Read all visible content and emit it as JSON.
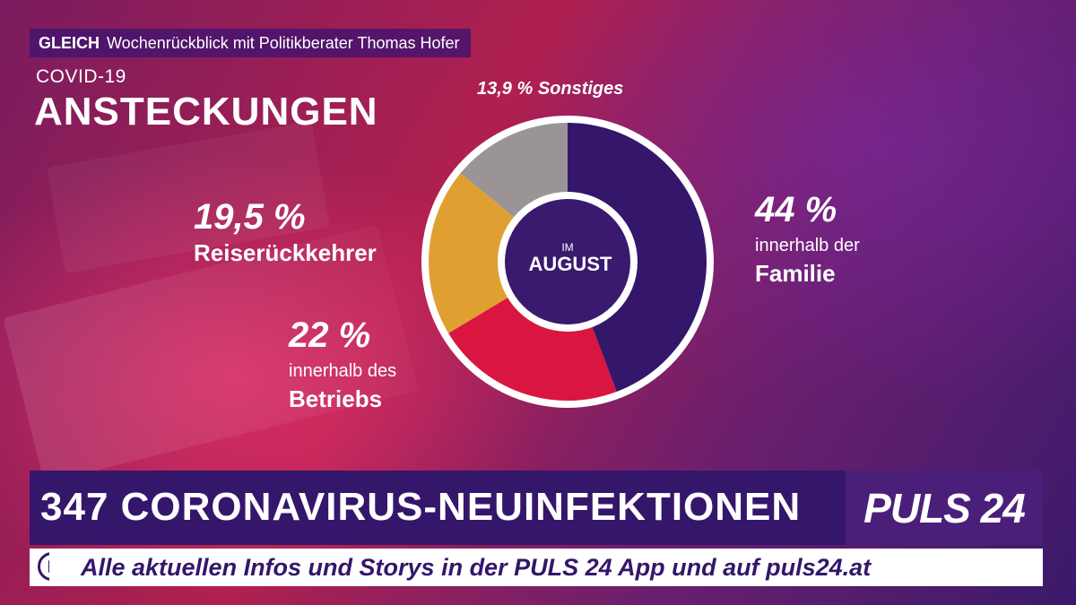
{
  "teaser": {
    "strong": "GLEICH",
    "text": "Wochenrückblick mit Politikberater Thomas Hofer"
  },
  "topic": "COVID-19",
  "headline": "ANSTECKUNGEN",
  "chart_data": {
    "type": "pie",
    "center_label_small": "IM",
    "center_label_big": "AUGUST",
    "slices": [
      {
        "value": 44,
        "color": "#34166b",
        "pct_label": "44 %",
        "line1": "innerhalb der",
        "line2": "Familie"
      },
      {
        "value": 22,
        "color": "#d8163f",
        "pct_label": "22 %",
        "line1": "innerhalb des",
        "line2": "Betriebs"
      },
      {
        "value": 19.5,
        "color": "#e0a031",
        "pct_label": "19,5 %",
        "line1": "Reiserückkehrer",
        "line2": ""
      },
      {
        "value": 13.9,
        "color": "#9a9496",
        "pct_label": "13,9 % Sonstiges",
        "line1": "",
        "line2": ""
      }
    ]
  },
  "ticker": {
    "text": "347 CORONAVIRUS-NEUINFEKTIONEN",
    "logo": "PULS 24"
  },
  "subticker": {
    "text": "Alle aktuellen Infos und Storys in der PULS 24 App und auf puls24.at"
  },
  "icons": {
    "play": "play-circle-icon"
  }
}
